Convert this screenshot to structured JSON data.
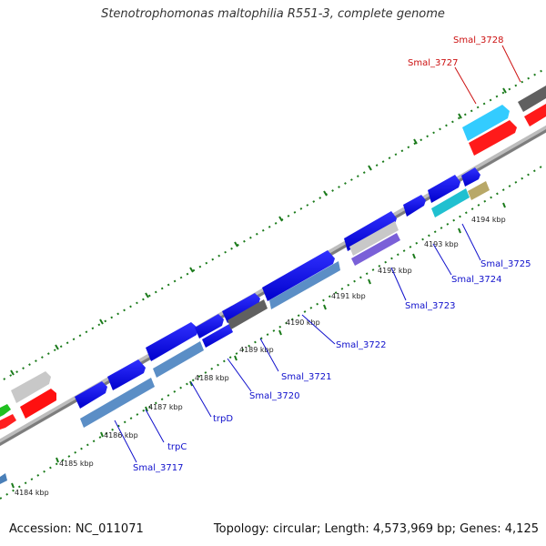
{
  "title": "Stenotrophomonas maltophilia R551-3, complete genome",
  "footer": {
    "accession": "Accession: NC_011071",
    "summary": "Topology: circular; Length: 4,573,969 bp; Genes: 4,125"
  },
  "ticks": [
    "4184 kbp",
    "4185 kbp",
    "4186 kbp",
    "4187 kbp",
    "4188 kbp",
    "4189 kbp",
    "4190 kbp",
    "4191 kbp",
    "4192 kbp",
    "4193 kbp",
    "4194 kbp"
  ],
  "genes_blue": [
    "Smal_3717",
    "trpC",
    "trpD",
    "Smal_3720",
    "Smal_3721",
    "Smal_3722",
    "Smal_3723",
    "Smal_3724",
    "Smal_3725"
  ],
  "genes_red": [
    "Smal_3727",
    "Smal_3728"
  ],
  "colors": {
    "blue_label": "#1010cc",
    "red_label": "#cc1010",
    "tick": "#1a7a1a",
    "backbone": "#8a8a8a"
  }
}
